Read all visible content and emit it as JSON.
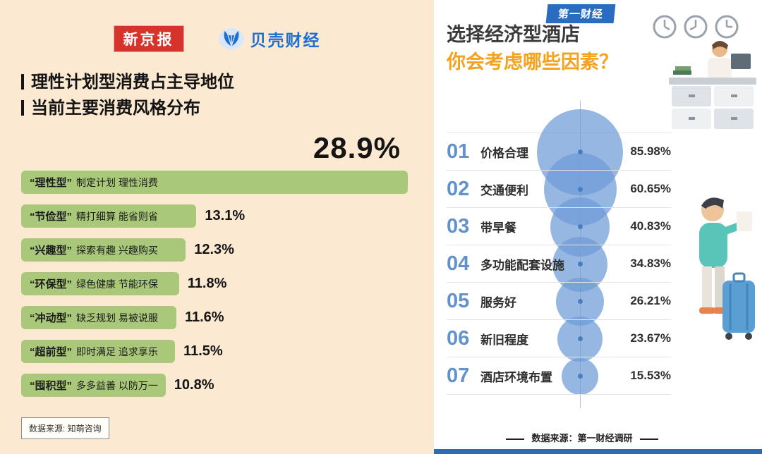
{
  "accent_colors": {
    "left_bg": "#fbe9d2",
    "bar_green": "#a9c87a",
    "xjb_red": "#d6332a",
    "bk_blue": "#1f6fd0",
    "bubble_blue": "#6e9bd7",
    "rank_blue": "#6292cc",
    "title_orange": "#f5a21c",
    "bottom_bar_blue": "#2e6bb7"
  },
  "left": {
    "logo_xjb": "新京报",
    "logo_bk": "贝壳财经",
    "title_line1": "理性计划型消费占主导地位",
    "title_line2": "当前主要消费风格分布",
    "top_value": "28.9%",
    "bars": [
      {
        "type": "“理性型”",
        "desc": "制定计划 理性消费"
      },
      {
        "type": "“节俭型”",
        "desc": "精打细算 能省则省",
        "pct": "13.1%"
      },
      {
        "type": "“兴趣型”",
        "desc": "探索有趣 兴趣购买",
        "pct": "12.3%"
      },
      {
        "type": "“环保型”",
        "desc": "绿色健康 节能环保",
        "pct": "11.8%"
      },
      {
        "type": "“冲动型”",
        "desc": "缺乏规划 易被说服",
        "pct": "11.6%"
      },
      {
        "type": "“超前型”",
        "desc": "即时满足 追求享乐",
        "pct": "11.5%"
      },
      {
        "type": "“囤积型”",
        "desc": "多多益善 以防万一",
        "pct": "10.8%"
      }
    ],
    "source": "数据来源: 知萌咨询"
  },
  "right": {
    "logo": "第一财经",
    "title_line1": "选择经济型酒店",
    "title_line2": "你会考虑哪些因素？",
    "items": [
      {
        "rank": "01",
        "label": "价格合理",
        "value": "85.98%"
      },
      {
        "rank": "02",
        "label": "交通便利",
        "value": "60.65%"
      },
      {
        "rank": "03",
        "label": "带早餐",
        "value": "40.83%"
      },
      {
        "rank": "04",
        "label": "多功能配套设施",
        "value": "34.83%"
      },
      {
        "rank": "05",
        "label": "服务好",
        "value": "26.21%"
      },
      {
        "rank": "06",
        "label": "新旧程度",
        "value": "23.67%"
      },
      {
        "rank": "07",
        "label": "酒店环境布置",
        "value": "15.53%"
      }
    ],
    "source": "数据来源：第一财经调研"
  },
  "chart_data": [
    {
      "type": "bar",
      "orientation": "horizontal",
      "title": "当前主要消费风格分布",
      "subtitle": "理性计划型消费占主导地位",
      "categories": [
        "理性型",
        "节俭型",
        "兴趣型",
        "环保型",
        "冲动型",
        "超前型",
        "囤积型"
      ],
      "category_descriptions": [
        "制定计划 理性消费",
        "精打细算 能省则省",
        "探索有趣 兴趣购买",
        "绿色健康 节能环保",
        "缺乏规划 易被说服",
        "即时满足 追求享乐",
        "多多益善 以防万一"
      ],
      "values": [
        28.9,
        13.1,
        12.3,
        11.8,
        11.6,
        11.5,
        10.8
      ],
      "unit": "%",
      "bar_color": "#a9c87a",
      "source": "知萌咨询"
    },
    {
      "type": "bubble",
      "title": "选择经济型酒店 你会考虑哪些因素？",
      "categories": [
        "价格合理",
        "交通便利",
        "带早餐",
        "多功能配套设施",
        "服务好",
        "新旧程度",
        "酒店环境布置"
      ],
      "values": [
        85.98,
        60.65,
        40.83,
        34.83,
        26.21,
        23.67,
        15.53
      ],
      "unit": "%",
      "bubble_color": "#6e9bd7",
      "source": "第一财经调研"
    }
  ]
}
